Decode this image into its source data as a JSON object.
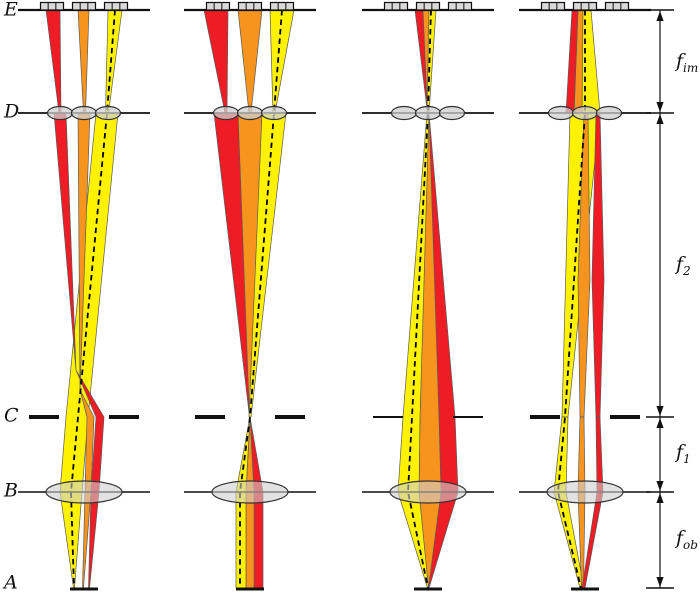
{
  "level_labels": [
    {
      "id": "E",
      "label": "E"
    },
    {
      "id": "D",
      "label": "D"
    },
    {
      "id": "C",
      "label": "C"
    },
    {
      "id": "B",
      "label": "B"
    },
    {
      "id": "A",
      "label": "A"
    }
  ],
  "focal_labels": [
    {
      "id": "f_im",
      "base": "f",
      "sub": "im"
    },
    {
      "id": "f_2",
      "base": "f",
      "sub": "2"
    },
    {
      "id": "f_1",
      "base": "f",
      "sub": "1"
    },
    {
      "id": "f_ob",
      "base": "f",
      "sub": "ob"
    }
  ],
  "colors": {
    "ray_red": "#ee1c25",
    "ray_orange": "#f7941d",
    "ray_yellow": "#fff200",
    "ray_outline": "#5a5a5a",
    "chief_ray": "#000000",
    "line": "#111111",
    "lens_fill": "#cfcfcf",
    "lens_stroke": "#333333",
    "sensor_fill": "#d9d9d9",
    "background": "#ffffff"
  },
  "panels": [
    {
      "id": "panel-1",
      "sensor_group_count": 3,
      "sensor_cells_per_group": 3,
      "lenslet_count": 3,
      "aperture_style": "thick",
      "rays": [
        "red",
        "orange",
        "yellow"
      ],
      "has_chief_ray_dashed": true
    },
    {
      "id": "panel-2",
      "sensor_group_count": 3,
      "sensor_cells_per_group": 3,
      "lenslet_count": 3,
      "aperture_style": "thick",
      "rays": [
        "red",
        "orange",
        "yellow"
      ],
      "has_chief_ray_dashed": true
    },
    {
      "id": "panel-3",
      "sensor_group_count": 3,
      "sensor_cells_per_group": 3,
      "lenslet_count": 3,
      "aperture_style": "thin",
      "rays": [
        "red",
        "orange",
        "yellow"
      ],
      "has_chief_ray_dashed": true
    },
    {
      "id": "panel-4",
      "sensor_group_count": 3,
      "sensor_cells_per_group": 3,
      "lenslet_count": 3,
      "aperture_style": "thick",
      "rays": [
        "red",
        "orange",
        "yellow"
      ],
      "has_chief_ray_dashed": true
    }
  ]
}
